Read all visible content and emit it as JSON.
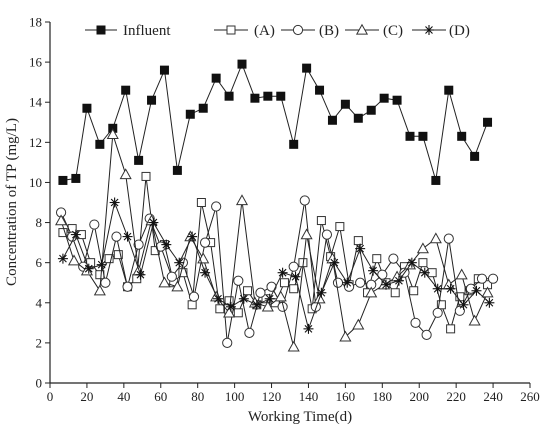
{
  "chart_data": {
    "type": "line",
    "xlabel": "Working Time(d)",
    "ylabel": "Concentration of TP (mg/L)",
    "xlim": [
      0,
      260
    ],
    "ylim": [
      0,
      18
    ],
    "xticks": [
      0,
      20,
      40,
      60,
      80,
      100,
      120,
      140,
      160,
      180,
      200,
      220,
      240,
      260
    ],
    "yticks": [
      0,
      2,
      4,
      6,
      8,
      10,
      12,
      14,
      16,
      18
    ],
    "grid": false,
    "legend_position": "top",
    "series": [
      {
        "name": "Influent",
        "marker": "filled-square",
        "x": [
          7,
          14,
          20,
          27,
          34,
          41,
          48,
          55,
          62,
          69,
          76,
          83,
          90,
          97,
          104,
          111,
          118,
          125,
          132,
          139,
          146,
          153,
          160,
          167,
          174,
          181,
          188,
          195,
          202,
          209,
          216,
          223,
          230,
          237
        ],
        "y": [
          10.1,
          10.2,
          13.7,
          11.9,
          12.7,
          14.6,
          11.1,
          14.1,
          15.6,
          10.6,
          13.4,
          13.7,
          15.2,
          14.3,
          15.9,
          14.2,
          14.3,
          14.3,
          11.9,
          15.7,
          14.6,
          13.1,
          13.9,
          13.2,
          13.6,
          14.2,
          14.1,
          12.3,
          12.3,
          10.1,
          14.6,
          12.3,
          11.3,
          13.0
        ]
      },
      {
        "name": "(A)",
        "marker": "open-square",
        "x": [
          7,
          12,
          17,
          22,
          27,
          32,
          37,
          42,
          47,
          52,
          57,
          62,
          67,
          72,
          77,
          82,
          87,
          92,
          97,
          102,
          107,
          112,
          117,
          122,
          127,
          132,
          137,
          142,
          147,
          152,
          157,
          162,
          167,
          172,
          177,
          182,
          187,
          192,
          197,
          202,
          207,
          212,
          217,
          222,
          227,
          232,
          237
        ],
        "y": [
          7.5,
          7.7,
          7.4,
          6.0,
          5.4,
          6.2,
          6.4,
          4.8,
          5.2,
          10.3,
          6.6,
          6.9,
          5.0,
          5.5,
          3.9,
          9.0,
          7.0,
          3.7,
          4.1,
          3.5,
          4.6,
          3.9,
          4.2,
          4.0,
          5.0,
          4.7,
          6.0,
          3.7,
          8.1,
          6.3,
          7.8,
          4.9,
          7.1,
          4.5,
          6.2,
          5.0,
          4.5,
          5.8,
          4.6,
          6.0,
          5.5,
          3.9,
          2.7,
          4.3,
          4.6,
          5.2,
          4.9
        ]
      },
      {
        "name": "(B)",
        "marker": "open-circle",
        "x": [
          6,
          12,
          18,
          24,
          30,
          36,
          42,
          48,
          54,
          60,
          66,
          72,
          78,
          84,
          90,
          96,
          102,
          108,
          114,
          120,
          126,
          132,
          138,
          144,
          150,
          156,
          162,
          168,
          174,
          180,
          186,
          192,
          198,
          204,
          210,
          216,
          222,
          228,
          234,
          240
        ],
        "y": [
          8.5,
          7.3,
          5.8,
          7.9,
          5.0,
          7.3,
          4.8,
          6.9,
          8.2,
          6.8,
          5.3,
          6.0,
          4.3,
          7.0,
          8.8,
          2.0,
          5.1,
          2.5,
          4.5,
          4.8,
          3.8,
          5.8,
          9.1,
          3.8,
          7.4,
          5.0,
          4.8,
          5.0,
          4.9,
          5.4,
          6.2,
          5.5,
          3.0,
          2.4,
          3.5,
          7.2,
          3.6,
          4.7,
          5.2,
          5.2
        ]
      },
      {
        "name": "(C)",
        "marker": "open-triangle",
        "x": [
          6,
          13,
          20,
          27,
          34,
          41,
          48,
          55,
          62,
          69,
          76,
          83,
          90,
          97,
          104,
          111,
          118,
          125,
          132,
          139,
          146,
          153,
          160,
          167,
          174,
          181,
          188,
          195,
          202,
          209,
          216,
          223,
          230,
          237
        ],
        "y": [
          8.1,
          6.1,
          5.6,
          4.6,
          12.4,
          10.4,
          5.6,
          8.1,
          5.0,
          4.8,
          7.3,
          6.2,
          4.3,
          3.5,
          9.1,
          4.0,
          3.8,
          4.3,
          1.8,
          7.4,
          4.2,
          6.2,
          2.3,
          2.9,
          4.5,
          4.9,
          5.3,
          5.9,
          6.7,
          7.2,
          4.9,
          5.4,
          3.1,
          4.5
        ]
      },
      {
        "name": "(D)",
        "marker": "asterisk",
        "x": [
          7,
          14,
          21,
          28,
          35,
          42,
          49,
          56,
          63,
          70,
          77,
          84,
          91,
          98,
          105,
          112,
          119,
          126,
          133,
          140,
          147,
          154,
          161,
          168,
          175,
          182,
          189,
          196,
          203,
          210,
          217,
          224,
          231,
          238
        ],
        "y": [
          6.2,
          7.4,
          5.7,
          5.9,
          9.0,
          7.3,
          5.4,
          8.0,
          6.9,
          6.0,
          7.3,
          5.5,
          4.2,
          3.8,
          4.2,
          3.9,
          4.2,
          5.5,
          5.3,
          2.7,
          4.5,
          6.0,
          5.0,
          6.7,
          5.6,
          4.9,
          5.1,
          6.0,
          5.5,
          4.7,
          4.7,
          3.9,
          4.6,
          4.0
        ]
      }
    ]
  }
}
